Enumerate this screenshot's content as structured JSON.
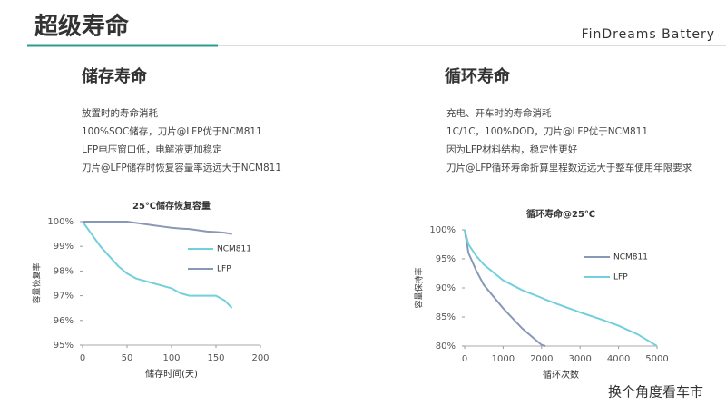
{
  "header": {
    "title": "超级寿命",
    "brand": "FinDreams Battery"
  },
  "left": {
    "heading": "储存寿命",
    "bullets": [
      "放置时的寿命消耗",
      "100%SOC储存，刀片@LFP优于NCM811",
      "LFP电压窗口低，电解液更加稳定",
      "刀片@LFP储存时恢复容量率远远大于NCM811"
    ]
  },
  "right": {
    "heading": "循环寿命",
    "bullets": [
      "充电、开车时的寿命消耗",
      "1C/1C，100%DOD，刀片@LFP优于NCM811",
      "因为LFP材料结构，稳定性更好",
      "刀片@LFP循环寿命折算里程数远远大于整车使用年限要求"
    ]
  },
  "watermark": "换个角度看车市",
  "chart_data": [
    {
      "type": "line",
      "title": "25℃储存恢复容量",
      "x_label": "储存时间(天)",
      "y_label": "容量恢复率",
      "x": [
        0,
        10,
        20,
        30,
        40,
        50,
        60,
        70,
        80,
        90,
        100,
        110,
        120,
        130,
        140,
        150,
        160,
        168
      ],
      "series": [
        {
          "name": "NCM811",
          "color": "#72d0dc",
          "values": [
            100,
            99.5,
            99.0,
            98.6,
            98.2,
            97.9,
            97.7,
            97.6,
            97.5,
            97.4,
            97.3,
            97.1,
            97.0,
            97.0,
            97.0,
            97.0,
            96.8,
            96.5
          ]
        },
        {
          "name": "LFP",
          "color": "#8a98b8",
          "values": [
            100,
            100,
            100,
            100,
            100,
            100,
            99.95,
            99.9,
            99.85,
            99.8,
            99.75,
            99.72,
            99.7,
            99.65,
            99.6,
            99.58,
            99.55,
            99.5
          ]
        }
      ],
      "xlim": [
        0,
        200
      ],
      "xticks": [
        0,
        50,
        100,
        150,
        200
      ],
      "ylim": [
        95,
        100
      ],
      "yticks": [
        {
          "value": 95,
          "label": "95%"
        },
        {
          "value": 96,
          "label": "96%"
        },
        {
          "value": 97,
          "label": "97%"
        },
        {
          "value": 98,
          "label": "98%"
        },
        {
          "value": 99,
          "label": "99%"
        },
        {
          "value": 100,
          "label": "100%"
        }
      ],
      "legend": "right"
    },
    {
      "type": "line",
      "title": "循环寿命@25℃",
      "x_label": "循环次数",
      "y_label": "容量保持率",
      "x": [
        0,
        100,
        300,
        500,
        1000,
        1500,
        2000,
        2100,
        2500,
        3000,
        3500,
        4000,
        4500,
        5000
      ],
      "series": [
        {
          "name": "NCM811",
          "color": "#8a98b8",
          "values": [
            100,
            96,
            93,
            90.5,
            86.5,
            83,
            80.2,
            80,
            null,
            null,
            null,
            null,
            null,
            null
          ]
        },
        {
          "name": "LFP",
          "color": "#72d0dc",
          "values": [
            100,
            97.5,
            95.5,
            94,
            91.3,
            89.6,
            88.3,
            88,
            87,
            85.8,
            84.7,
            83.5,
            82,
            80
          ]
        }
      ],
      "xlim": [
        0,
        5000
      ],
      "xticks": [
        0,
        1000,
        2000,
        3000,
        4000,
        5000
      ],
      "ylim": [
        80,
        100
      ],
      "yticks": [
        {
          "value": 80,
          "label": "80%"
        },
        {
          "value": 85,
          "label": "85%"
        },
        {
          "value": 90,
          "label": "90%"
        },
        {
          "value": 95,
          "label": "95%"
        },
        {
          "value": 100,
          "label": "100%"
        }
      ],
      "legend": "right"
    }
  ]
}
